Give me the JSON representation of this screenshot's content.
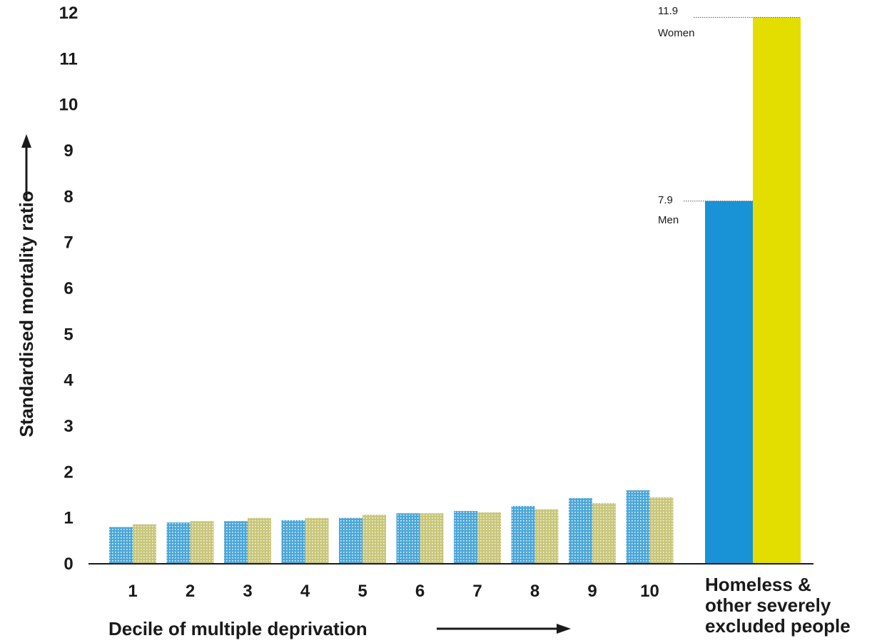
{
  "chart_data": {
    "type": "bar",
    "title": "",
    "xlabel": "Decile of multiple deprivation",
    "ylabel": "Standardised mortality ratio",
    "ylim": [
      0,
      12
    ],
    "yticks": [
      "0",
      "1",
      "2",
      "3",
      "4",
      "5",
      "6",
      "7",
      "8",
      "9",
      "10",
      "11",
      "12"
    ],
    "categories": [
      "1",
      "2",
      "3",
      "4",
      "5",
      "6",
      "7",
      "8",
      "9",
      "10"
    ],
    "series": [
      {
        "values": [
          0.8,
          0.9,
          0.93,
          0.95,
          1.0,
          1.1,
          1.15,
          1.26,
          1.43,
          1.6
        ],
        "color": "#4aa6d8"
      },
      {
        "values": [
          0.86,
          0.93,
          1.0,
          1.0,
          1.07,
          1.1,
          1.12,
          1.19,
          1.32,
          1.45
        ],
        "color": "#c8c67a"
      }
    ],
    "highlight_group": {
      "label_lines": [
        "Homeless &",
        "other severely",
        "excluded people"
      ],
      "bars": [
        {
          "name": "Men",
          "value": 7.9,
          "value_label": "7.9",
          "color": "#1a92d6"
        },
        {
          "name": "Women",
          "value": 11.9,
          "value_label": "11.9",
          "color": "#e3de00"
        }
      ]
    },
    "grid": false,
    "legend": "none"
  }
}
